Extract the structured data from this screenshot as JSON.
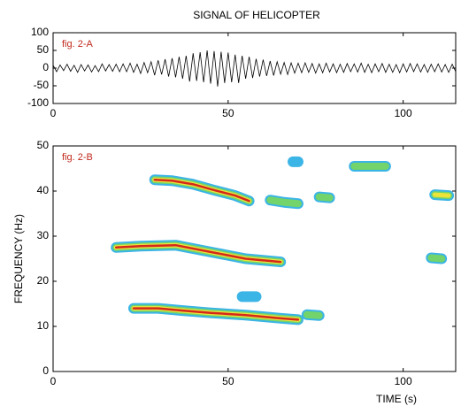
{
  "chart_data": [
    {
      "type": "line",
      "title": "SIGNAL OF HELICOPTER",
      "annotation": "fig. 2-A",
      "color": "#000000",
      "xlim": [
        0,
        115
      ],
      "xticks": [
        0,
        50,
        100
      ],
      "ylim": [
        -100,
        100
      ],
      "yticks": [
        -100,
        -50,
        0,
        50,
        100
      ],
      "x": [
        0,
        1,
        2,
        3,
        4,
        5,
        6,
        7,
        8,
        9,
        10,
        11,
        12,
        13,
        14,
        15,
        16,
        17,
        18,
        19,
        20,
        21,
        22,
        23,
        24,
        25,
        26,
        27,
        28,
        29,
        30,
        31,
        32,
        33,
        34,
        35,
        36,
        37,
        38,
        39,
        40,
        41,
        42,
        43,
        44,
        45,
        46,
        47,
        48,
        49,
        50,
        51,
        52,
        53,
        54,
        55,
        56,
        57,
        58,
        59,
        60,
        61,
        62,
        63,
        64,
        65,
        66,
        67,
        68,
        69,
        70,
        71,
        72,
        73,
        74,
        75,
        76,
        77,
        78,
        79,
        80,
        81,
        82,
        83,
        84,
        85,
        86,
        87,
        88,
        89,
        90,
        91,
        92,
        93,
        94,
        95,
        96,
        97,
        98,
        99,
        100,
        101,
        102,
        103,
        104,
        105,
        106,
        107,
        108,
        109,
        110,
        111,
        112,
        113,
        114,
        115
      ],
      "values": [
        8,
        -10,
        9,
        -7,
        11,
        -9,
        8,
        -12,
        10,
        -8,
        9,
        -11,
        7,
        -10,
        12,
        -8,
        10,
        -9,
        11,
        -10,
        12,
        -10,
        14,
        -12,
        11,
        -15,
        16,
        -13,
        18,
        -20,
        22,
        -18,
        25,
        -24,
        28,
        -26,
        32,
        -30,
        35,
        -38,
        42,
        -36,
        45,
        -40,
        50,
        -44,
        48,
        -52,
        46,
        -42,
        44,
        -40,
        38,
        -42,
        35,
        -30,
        32,
        -28,
        26,
        -24,
        24,
        -22,
        20,
        -21,
        18,
        -17,
        16,
        -18,
        15,
        -14,
        14,
        -13,
        15,
        -12,
        13,
        -14,
        12,
        -13,
        14,
        -11,
        12,
        -13,
        11,
        -12,
        13,
        -10,
        12,
        -11,
        14,
        -12,
        11,
        -13,
        12,
        -10,
        13,
        -12,
        11,
        -12,
        10,
        -13,
        12,
        -11,
        13,
        -10,
        12,
        -11,
        10,
        -12,
        11,
        -10,
        12,
        -11,
        10,
        -12,
        11,
        -10
      ]
    },
    {
      "type": "contour",
      "annotation": "fig. 2-B",
      "xlabel": "TIME (s)",
      "ylabel": "FREQUENCY (Hz)",
      "xlim": [
        0,
        115
      ],
      "xticks": [
        0,
        50,
        100
      ],
      "ylim": [
        0,
        50
      ],
      "yticks": [
        0,
        10,
        20,
        30,
        40,
        50
      ],
      "level_colors": [
        "#3bb4e6",
        "#72d46a",
        "#ece43a",
        "#d4281a"
      ],
      "bands": [
        {
          "x": [
            29,
            34,
            40,
            46,
            52,
            56
          ],
          "y": [
            42.5,
            42.3,
            41.5,
            40.2,
            39,
            37.8
          ],
          "peak": 4
        },
        {
          "x": [
            18,
            25,
            35,
            45,
            55,
            65
          ],
          "y": [
            27.5,
            27.8,
            28,
            26.5,
            25,
            24.3
          ],
          "peak": 4
        },
        {
          "x": [
            23,
            30,
            37,
            45,
            55,
            65,
            70
          ],
          "y": [
            14,
            14,
            13.5,
            13,
            12.5,
            11.8,
            11.5
          ],
          "peak": 4
        },
        {
          "x": [
            62,
            66,
            70
          ],
          "y": [
            38,
            37.5,
            37.2
          ],
          "peak": 2
        },
        {
          "x": [
            76,
            79
          ],
          "y": [
            38.7,
            38.5
          ],
          "peak": 2
        },
        {
          "x": [
            68.5,
            70
          ],
          "y": [
            46.5,
            46.5
          ],
          "peak": 1
        },
        {
          "x": [
            86,
            95
          ],
          "y": [
            45.5,
            45.5
          ],
          "peak": 2
        },
        {
          "x": [
            109,
            113
          ],
          "y": [
            39.2,
            39
          ],
          "peak": 3
        },
        {
          "x": [
            108,
            111
          ],
          "y": [
            25.2,
            25
          ],
          "peak": 2
        },
        {
          "x": [
            72.5,
            76
          ],
          "y": [
            12.6,
            12.4
          ],
          "peak": 2
        },
        {
          "x": [
            54,
            58
          ],
          "y": [
            16.6,
            16.6
          ],
          "peak": 1
        }
      ]
    }
  ]
}
